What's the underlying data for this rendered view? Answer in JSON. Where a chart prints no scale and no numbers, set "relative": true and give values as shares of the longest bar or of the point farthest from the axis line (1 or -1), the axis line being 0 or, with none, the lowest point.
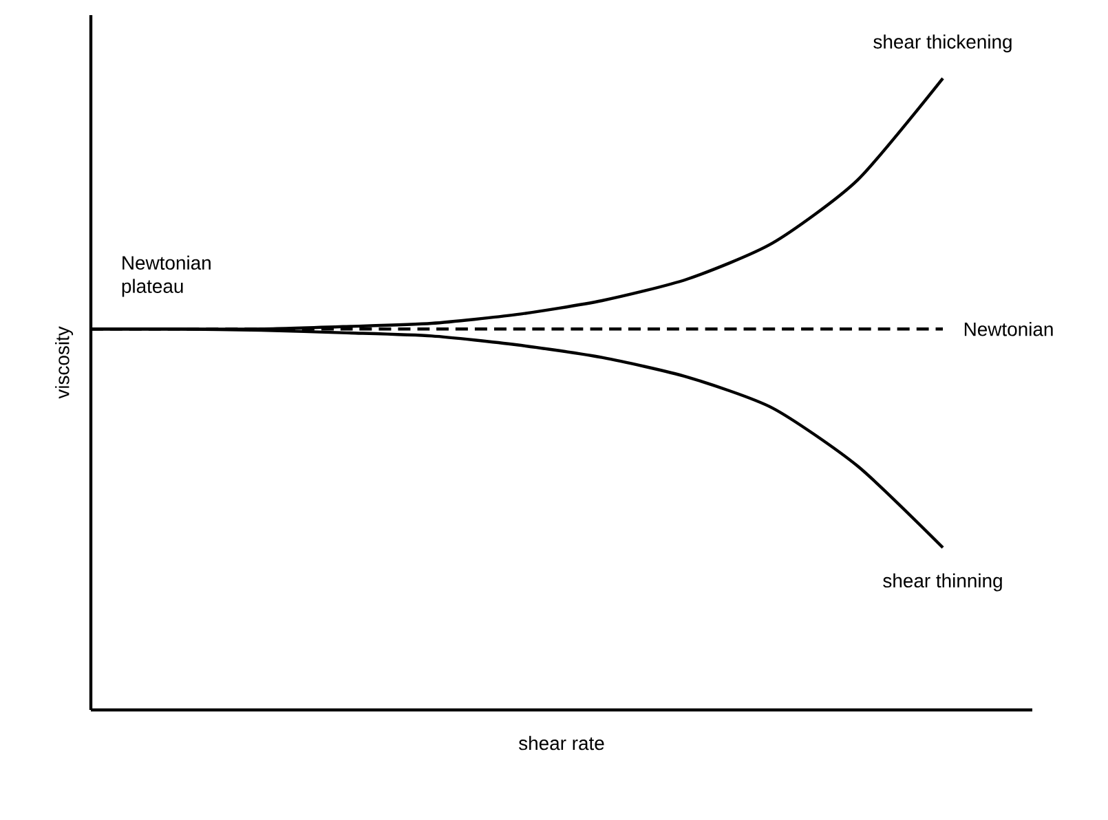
{
  "chart_data": {
    "type": "line",
    "relative": true,
    "xlabel": "shear rate",
    "ylabel": "viscosity",
    "categories": [
      null,
      null,
      null,
      null,
      null,
      null,
      null,
      null,
      null,
      null,
      null
    ],
    "series": [
      {
        "name": "shear thickening",
        "color": "#000000",
        "line_style": "solid",
        "values": [
          0.603,
          0.603,
          0.603,
          0.607,
          0.612,
          0.626,
          0.648,
          0.682,
          0.739,
          0.839,
          1
        ]
      },
      {
        "name": "Newtonian",
        "color": "#000000",
        "line_style": "dashed",
        "values": [
          0.603,
          0.603,
          0.603,
          0.603,
          0.603,
          0.603,
          0.603,
          0.603,
          0.603,
          0.603,
          0.603
        ]
      },
      {
        "name": "shear thinning",
        "color": "#000000",
        "line_style": "solid",
        "values": [
          0.603,
          0.603,
          0.601,
          0.597,
          0.592,
          0.578,
          0.558,
          0.527,
          0.478,
          0.386,
          0.257
        ]
      }
    ],
    "annotations": [
      "Newtonian plateau"
    ],
    "marker": "none"
  }
}
